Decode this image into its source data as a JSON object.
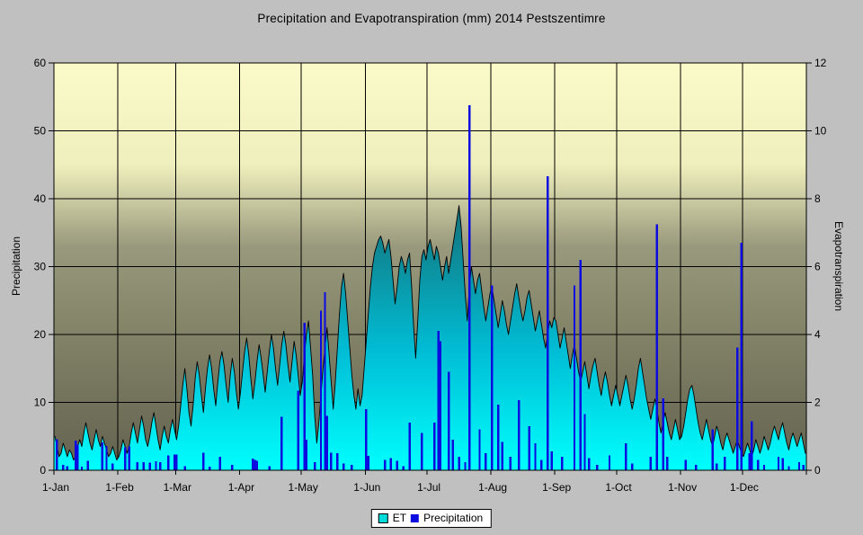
{
  "title": "Precipitation and Evapotranspiration (mm) 2014 Pestszentimre",
  "left_axis": {
    "title": "Precipitation",
    "min": 0,
    "max": 60,
    "ticks": [
      0,
      10,
      20,
      30,
      40,
      50,
      60
    ]
  },
  "right_axis": {
    "title": "Evapotranspiration",
    "min": 0,
    "max": 12,
    "ticks": [
      0,
      2,
      4,
      6,
      8,
      10,
      12
    ]
  },
  "x_axis": {
    "tick_labels": [
      "1-Jan",
      "1-Feb",
      "1-Mar",
      "1-Apr",
      "1-May",
      "1-Jun",
      "1-Jul",
      "1-Aug",
      "1-Sep",
      "1-Oct",
      "1-Nov",
      "1-Dec"
    ],
    "month_start_days": [
      0,
      31,
      59,
      90,
      120,
      151,
      181,
      212,
      243,
      273,
      304,
      334
    ],
    "days_in_year": 365
  },
  "legend": {
    "items": [
      {
        "label": "ET",
        "marker_color": "#00DCDC",
        "marker_border": "#000000"
      },
      {
        "label": "Precipitation",
        "marker_color": "#0C0CE0"
      }
    ]
  },
  "colors": {
    "chart_background": "#C0C0C0",
    "text": "#000000",
    "gridline": "#000000",
    "axis": "#000000",
    "legend_background": "#FFFFFF",
    "plot_bg_stops": [
      [
        "0%",
        "#FBFBC9"
      ],
      [
        "25%",
        "#EFEFBD"
      ],
      [
        "45%",
        "#99997D"
      ],
      [
        "62%",
        "#87876B"
      ],
      [
        "100%",
        "#626250"
      ]
    ],
    "et_fill_stops": [
      [
        "0%",
        "#166E76"
      ],
      [
        "55%",
        "#00BCD4"
      ],
      [
        "100%",
        "#00FFFF"
      ]
    ],
    "et_outline": "#000000",
    "precip_bar": "#0C0CE0"
  },
  "chart_data": {
    "type": "combo",
    "title": "Precipitation and Evapotranspiration (mm) 2014 Pestszentimre",
    "x_unit": "day of year 2014",
    "ylabel_left": "Precipitation",
    "ylabel_right": "Evapotranspiration",
    "ylim_left": [
      0,
      60
    ],
    "ylim_right": [
      0,
      12
    ],
    "grid": true,
    "legend_position": "bottom-center",
    "series": [
      {
        "name": "ET",
        "chart_type": "area",
        "axis": "right",
        "unit": "mm",
        "daily_values": [
          1.0,
          0.7,
          0.4,
          0.5,
          0.8,
          0.6,
          0.4,
          0.6,
          0.5,
          0.3,
          0.4,
          0.7,
          0.9,
          0.7,
          1.1,
          1.4,
          1.1,
          0.8,
          0.6,
          0.9,
          1.2,
          0.9,
          0.7,
          1.0,
          0.8,
          0.6,
          0.4,
          0.5,
          0.7,
          0.5,
          0.3,
          0.4,
          0.6,
          0.9,
          0.7,
          0.5,
          0.7,
          1.1,
          1.4,
          1.1,
          0.8,
          1.2,
          1.6,
          1.3,
          0.9,
          0.7,
          1.0,
          1.4,
          1.7,
          1.3,
          0.9,
          0.6,
          1.0,
          1.3,
          1.0,
          0.8,
          1.2,
          1.5,
          1.2,
          0.9,
          1.3,
          1.9,
          2.5,
          3.0,
          2.4,
          1.7,
          1.3,
          1.9,
          2.7,
          3.2,
          2.8,
          2.2,
          1.7,
          2.4,
          3.0,
          3.4,
          3.0,
          2.4,
          1.9,
          2.6,
          3.2,
          3.5,
          3.1,
          2.5,
          2.0,
          2.8,
          3.3,
          2.9,
          2.3,
          1.8,
          2.3,
          2.9,
          3.5,
          3.9,
          3.4,
          2.7,
          2.1,
          2.6,
          3.2,
          3.7,
          3.3,
          2.8,
          2.3,
          2.9,
          3.5,
          4.0,
          3.6,
          3.0,
          2.5,
          3.1,
          3.7,
          4.1,
          3.7,
          3.1,
          2.6,
          3.2,
          3.8,
          3.4,
          2.8,
          2.2,
          2.6,
          3.4,
          4.0,
          4.4,
          3.6,
          2.8,
          1.6,
          0.8,
          1.4,
          2.2,
          3.0,
          3.6,
          4.2,
          3.4,
          2.6,
          1.8,
          2.6,
          3.6,
          4.6,
          5.4,
          5.8,
          5.2,
          4.4,
          3.6,
          2.8,
          2.2,
          1.8,
          2.4,
          1.9,
          2.2,
          3.0,
          3.8,
          4.6,
          5.4,
          6.0,
          6.4,
          6.6,
          6.8,
          6.9,
          6.7,
          6.4,
          6.6,
          6.8,
          6.3,
          5.6,
          4.9,
          5.4,
          6.0,
          6.3,
          6.1,
          5.8,
          6.2,
          6.4,
          5.4,
          4.2,
          3.3,
          4.4,
          5.6,
          6.3,
          6.5,
          6.2,
          6.6,
          6.8,
          6.5,
          6.2,
          6.6,
          6.4,
          6.0,
          5.6,
          6.0,
          6.3,
          5.8,
          6.2,
          6.6,
          7.0,
          7.4,
          7.8,
          7.2,
          6.2,
          5.2,
          4.4,
          5.4,
          6.0,
          5.6,
          5.2,
          5.6,
          5.8,
          5.3,
          4.8,
          4.4,
          4.8,
          5.2,
          5.4,
          5.0,
          4.6,
          4.2,
          4.6,
          5.0,
          4.7,
          4.3,
          4.0,
          4.4,
          4.8,
          5.2,
          5.5,
          5.1,
          4.7,
          4.4,
          4.7,
          5.1,
          5.3,
          4.9,
          4.5,
          4.1,
          4.4,
          4.7,
          4.3,
          3.9,
          3.6,
          4.0,
          4.4,
          4.2,
          4.5,
          4.4,
          4.0,
          3.6,
          3.9,
          4.2,
          3.8,
          3.4,
          3.0,
          3.4,
          3.7,
          3.3,
          2.9,
          2.6,
          2.9,
          3.2,
          2.8,
          2.4,
          2.8,
          3.1,
          3.3,
          2.9,
          2.5,
          2.2,
          2.6,
          2.9,
          2.6,
          2.2,
          1.9,
          2.2,
          2.5,
          2.2,
          1.9,
          2.2,
          2.5,
          2.8,
          2.5,
          2.1,
          1.8,
          2.1,
          2.5,
          3.0,
          3.3,
          2.9,
          2.5,
          2.1,
          1.8,
          1.5,
          1.8,
          2.1,
          1.8,
          1.4,
          1.1,
          1.4,
          1.7,
          1.4,
          1.1,
          0.9,
          1.2,
          1.5,
          1.2,
          0.9,
          1.0,
          1.3,
          1.7,
          2.1,
          2.4,
          2.5,
          2.2,
          1.8,
          1.4,
          1.1,
          0.9,
          1.2,
          1.5,
          1.2,
          0.9,
          0.7,
          1.0,
          1.3,
          1.1,
          0.8,
          0.6,
          0.9,
          1.1,
          0.9,
          0.7,
          0.5,
          0.7,
          0.9,
          0.7,
          0.5,
          0.4,
          0.6,
          0.8,
          0.6,
          0.4,
          0.6,
          0.9,
          0.7,
          0.5,
          0.7,
          1.0,
          0.8,
          0.6,
          0.8,
          1.1,
          1.3,
          1.1,
          0.9,
          1.2,
          1.4,
          1.1,
          0.8,
          0.6,
          0.9,
          1.1,
          0.9,
          0.7,
          0.9,
          1.1,
          0.8,
          0.5
        ]
      },
      {
        "name": "Precipitation",
        "chart_type": "bar",
        "axis": "left",
        "unit": "mm",
        "default_value": 0,
        "daily_values_sparse": {
          "1": 4.6,
          "4": 0.8,
          "6": 0.6,
          "10": 4.4,
          "11": 3.8,
          "13": 0.5,
          "16": 1.4,
          "23": 4.1,
          "25": 3.6,
          "28": 1.0,
          "34": 3.4,
          "36": 3.5,
          "40": 1.2,
          "43": 1.2,
          "46": 1.1,
          "49": 1.3,
          "51": 1.2,
          "55": 2.2,
          "58": 2.3,
          "59": 2.3,
          "63": 0.6,
          "72": 2.6,
          "75": 0.5,
          "80": 2.0,
          "86": 0.8,
          "96": 1.7,
          "97": 1.5,
          "98": 1.4,
          "104": 0.6,
          "110": 7.9,
          "118": 11.7,
          "121": 21.7,
          "122": 4.5,
          "126": 1.2,
          "129": 23.5,
          "131": 26.2,
          "132": 8.0,
          "134": 2.6,
          "137": 2.5,
          "140": 1.0,
          "144": 0.8,
          "151": 9.0,
          "152": 2.1,
          "160": 1.5,
          "163": 1.8,
          "166": 1.4,
          "169": 0.6,
          "172": 7.0,
          "178": 5.5,
          "184": 7.0,
          "186": 20.5,
          "187": 19.0,
          "191": 14.5,
          "193": 4.5,
          "196": 2.0,
          "199": 1.2,
          "201": 53.8,
          "206": 6.0,
          "209": 2.5,
          "212": 27.2,
          "215": 9.7,
          "217": 4.2,
          "221": 2.0,
          "225": 10.3,
          "230": 6.5,
          "233": 4.0,
          "236": 1.5,
          "239": 43.3,
          "241": 2.8,
          "246": 2.0,
          "252": 27.2,
          "255": 31.0,
          "257": 8.3,
          "259": 1.8,
          "263": 0.8,
          "269": 2.2,
          "277": 4.0,
          "280": 1.0,
          "289": 2.0,
          "292": 36.2,
          "295": 10.6,
          "297": 2.0,
          "306": 1.5,
          "311": 0.8,
          "319": 6.0,
          "321": 1.0,
          "325": 2.0,
          "331": 18.1,
          "333": 33.5,
          "337": 2.5,
          "338": 7.2,
          "341": 1.5,
          "344": 0.8,
          "351": 2.0,
          "353": 1.8,
          "356": 0.6,
          "361": 1.2,
          "363": 0.8
        }
      }
    ]
  }
}
